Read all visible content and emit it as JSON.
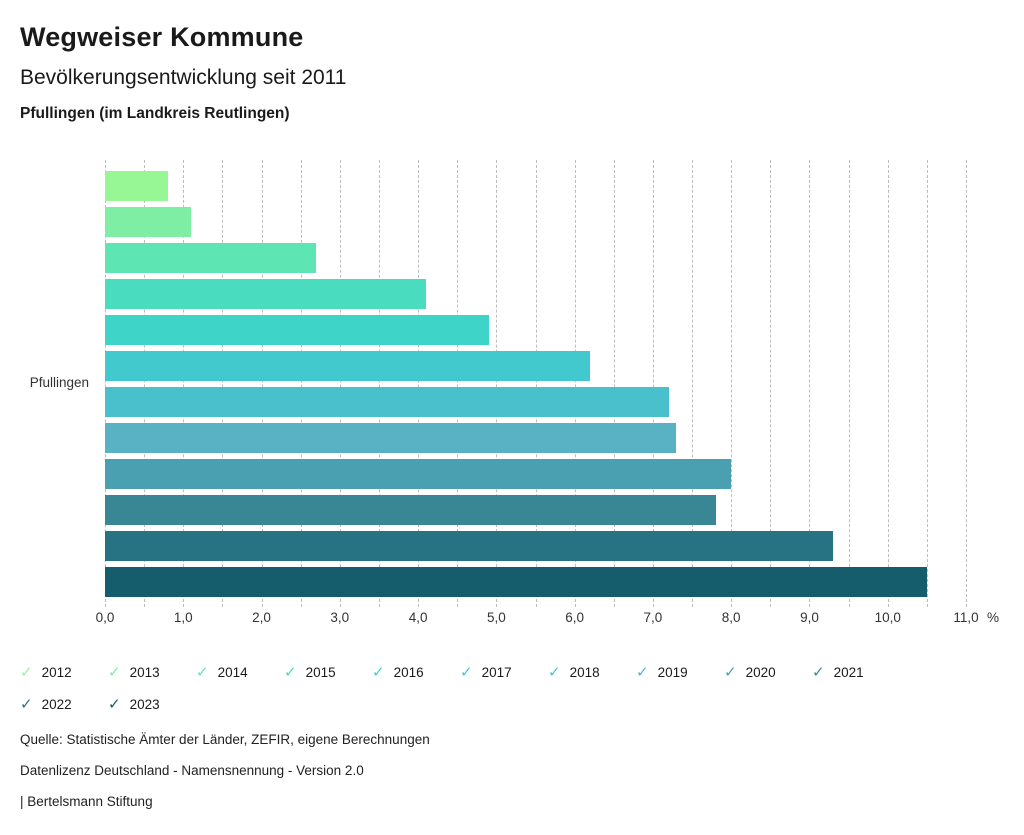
{
  "header": {
    "title": "Wegweiser Kommune",
    "subtitle": "Bevölkerungsentwicklung seit 2011",
    "region": "Pfullingen (im Landkreis Reutlingen)"
  },
  "chart_data": {
    "type": "bar",
    "orientation": "horizontal",
    "title": "Bevölkerungsentwicklung seit 2011",
    "category_label": "Pfullingen",
    "xlabel": "%",
    "xlim": [
      0,
      11
    ],
    "grid": "dashed vertical gridlines every 0.5",
    "legend_position": "bottom",
    "x_ticks": [
      "0,0",
      "1,0",
      "2,0",
      "3,0",
      "4,0",
      "5,0",
      "6,0",
      "7,0",
      "8,0",
      "9,0",
      "10,0",
      "11,0"
    ],
    "unit": "%",
    "series": [
      {
        "year": "2012",
        "value": 0.8,
        "color": "#97F795"
      },
      {
        "year": "2013",
        "value": 1.1,
        "color": "#7DEEA4"
      },
      {
        "year": "2014",
        "value": 2.7,
        "color": "#5DE5B3"
      },
      {
        "year": "2015",
        "value": 4.1,
        "color": "#49DCBF"
      },
      {
        "year": "2016",
        "value": 4.9,
        "color": "#3ED4C8"
      },
      {
        "year": "2017",
        "value": 6.2,
        "color": "#41C9CE"
      },
      {
        "year": "2018",
        "value": 7.2,
        "color": "#4BC0CD"
      },
      {
        "year": "2019",
        "value": 7.3,
        "color": "#58B2C4"
      },
      {
        "year": "2020",
        "value": 8.0,
        "color": "#4A9FB0"
      },
      {
        "year": "2021",
        "value": 7.8,
        "color": "#398794"
      },
      {
        "year": "2022",
        "value": 9.3,
        "color": "#277283"
      },
      {
        "year": "2023",
        "value": 10.5,
        "color": "#155C6C"
      }
    ]
  },
  "legend": {
    "check_icon": "✓"
  },
  "footer": {
    "source": "Quelle: Statistische Ämter der Länder, ZEFIR, eigene Berechnungen",
    "license": "Datenlizenz Deutschland - Namensnennung - Version 2.0",
    "brand": "| Bertelsmann Stiftung"
  }
}
